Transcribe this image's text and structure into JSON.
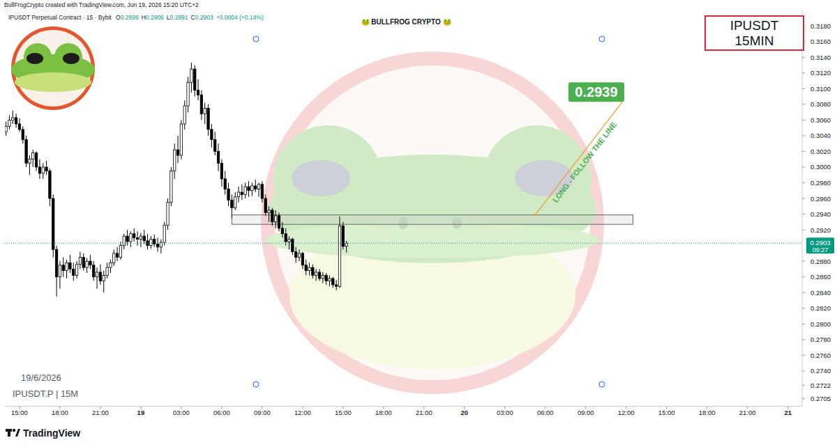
{
  "header": {
    "credit": "BullFrogCrypto created with TradingView.com, Jun 19, 2026 15:20 UTC+2",
    "symbol": "IPUSDT Perpetual Contract · 15 · Bybit",
    "ohlc_labels": [
      "O",
      "H",
      "L",
      "C"
    ],
    "change": "+0.0004 (+0.14%)",
    "brand": "🐸 BULLFROG CRYPTO 🐸",
    "title_box": [
      "IPUSDT",
      "15MIN"
    ],
    "date": "19/6/2026",
    "pair_label": "IPUSDT.P | 15M",
    "countdown": "09:27",
    "footer": "TradingView"
  },
  "chart_data": {
    "type": "candlestick",
    "grid": false,
    "x": [
      "2026-06-18T14:00",
      "2026-06-18T14:15",
      "2026-06-18T14:30",
      "2026-06-18T14:45",
      "2026-06-18T15:00",
      "2026-06-18T15:15",
      "2026-06-18T15:30",
      "2026-06-18T15:45",
      "2026-06-18T16:00",
      "2026-06-18T16:15",
      "2026-06-18T16:30",
      "2026-06-18T16:45",
      "2026-06-18T17:00",
      "2026-06-18T17:15",
      "2026-06-18T17:30",
      "2026-06-18T17:45",
      "2026-06-18T18:00",
      "2026-06-18T18:15",
      "2026-06-18T18:30",
      "2026-06-18T18:45",
      "2026-06-18T19:00",
      "2026-06-18T19:15",
      "2026-06-18T19:30",
      "2026-06-18T19:45",
      "2026-06-18T20:00",
      "2026-06-18T20:15",
      "2026-06-18T20:30",
      "2026-06-18T20:45",
      "2026-06-18T21:00",
      "2026-06-18T21:15",
      "2026-06-18T21:30",
      "2026-06-18T21:45",
      "2026-06-18T22:00",
      "2026-06-18T22:15",
      "2026-06-18T22:30",
      "2026-06-18T22:45",
      "2026-06-18T23:00",
      "2026-06-18T23:15",
      "2026-06-18T23:30",
      "2026-06-18T23:45",
      "2026-06-19T00:00",
      "2026-06-19T00:15",
      "2026-06-19T00:30",
      "2026-06-19T00:45",
      "2026-06-19T01:00",
      "2026-06-19T01:15",
      "2026-06-19T01:30",
      "2026-06-19T01:45",
      "2026-06-19T02:00",
      "2026-06-19T02:15",
      "2026-06-19T02:30",
      "2026-06-19T02:45",
      "2026-06-19T03:00",
      "2026-06-19T03:15",
      "2026-06-19T03:30",
      "2026-06-19T03:45",
      "2026-06-19T04:00",
      "2026-06-19T04:15",
      "2026-06-19T04:30",
      "2026-06-19T04:45",
      "2026-06-19T05:00",
      "2026-06-19T05:15",
      "2026-06-19T05:30",
      "2026-06-19T05:45",
      "2026-06-19T06:00",
      "2026-06-19T06:15",
      "2026-06-19T06:30",
      "2026-06-19T06:45",
      "2026-06-19T07:00",
      "2026-06-19T07:15",
      "2026-06-19T07:30",
      "2026-06-19T07:45",
      "2026-06-19T08:00",
      "2026-06-19T08:15",
      "2026-06-19T08:30",
      "2026-06-19T08:45",
      "2026-06-19T09:00",
      "2026-06-19T09:15",
      "2026-06-19T09:30",
      "2026-06-19T09:45",
      "2026-06-19T10:00",
      "2026-06-19T10:15",
      "2026-06-19T10:30",
      "2026-06-19T10:45",
      "2026-06-19T11:00",
      "2026-06-19T11:15",
      "2026-06-19T11:30",
      "2026-06-19T11:45",
      "2026-06-19T12:00",
      "2026-06-19T12:15",
      "2026-06-19T12:30",
      "2026-06-19T12:45",
      "2026-06-19T13:00",
      "2026-06-19T13:15",
      "2026-06-19T13:30",
      "2026-06-19T13:45",
      "2026-06-19T14:00",
      "2026-06-19T14:15",
      "2026-06-19T14:30",
      "2026-06-19T14:45",
      "2026-06-19T15:00",
      "2026-06-19T15:15"
    ],
    "open": [
      0.3045,
      0.3052,
      0.306,
      0.3063,
      0.3055,
      0.3048,
      0.3035,
      0.3005,
      0.301,
      0.3018,
      0.3,
      0.2992,
      0.3,
      0.2995,
      0.296,
      0.2895,
      0.286,
      0.2875,
      0.2868,
      0.2878,
      0.287,
      0.2862,
      0.2876,
      0.2885,
      0.2872,
      0.288,
      0.2875,
      0.286,
      0.2866,
      0.2855,
      0.2862,
      0.2872,
      0.2878,
      0.289,
      0.2885,
      0.29,
      0.2912,
      0.2905,
      0.2915,
      0.291,
      0.2908,
      0.2912,
      0.2906,
      0.29,
      0.2908,
      0.2902,
      0.2898,
      0.2904,
      0.2926,
      0.2955,
      0.2995,
      0.3022,
      0.3015,
      0.3055,
      0.3078,
      0.3108,
      0.3125,
      0.3098,
      0.3092,
      0.3068,
      0.3075,
      0.3048,
      0.3035,
      0.302,
      0.3005,
      0.2985,
      0.2972,
      0.2958,
      0.2948,
      0.2962,
      0.2968,
      0.2965,
      0.2975,
      0.297,
      0.2976,
      0.2972,
      0.2978,
      0.296,
      0.2942,
      0.2945,
      0.293,
      0.2938,
      0.2922,
      0.2915,
      0.2905,
      0.2908,
      0.2892,
      0.2885,
      0.289,
      0.2875,
      0.2868,
      0.2872,
      0.2862,
      0.2866,
      0.2858,
      0.2862,
      0.2855,
      0.2858,
      0.285,
      0.2848,
      0.2925,
      0.2899
    ],
    "high": [
      0.3058,
      0.3066,
      0.3072,
      0.3068,
      0.3062,
      0.3052,
      0.304,
      0.3015,
      0.3022,
      0.302,
      0.301,
      0.3005,
      0.3008,
      0.2998,
      0.2965,
      0.29,
      0.288,
      0.2885,
      0.2882,
      0.2888,
      0.2878,
      0.288,
      0.2892,
      0.289,
      0.2884,
      0.2888,
      0.288,
      0.2872,
      0.2876,
      0.2868,
      0.2878,
      0.2882,
      0.2895,
      0.2898,
      0.2905,
      0.2915,
      0.292,
      0.2918,
      0.2922,
      0.2918,
      0.2916,
      0.292,
      0.2915,
      0.2912,
      0.2914,
      0.291,
      0.2908,
      0.293,
      0.296,
      0.3,
      0.303,
      0.304,
      0.306,
      0.3085,
      0.3115,
      0.3133,
      0.313,
      0.3112,
      0.3098,
      0.3082,
      0.308,
      0.3055,
      0.3045,
      0.303,
      0.301,
      0.2995,
      0.298,
      0.2965,
      0.2968,
      0.2975,
      0.2978,
      0.298,
      0.2982,
      0.298,
      0.2984,
      0.298,
      0.2982,
      0.2965,
      0.295,
      0.2948,
      0.2945,
      0.2942,
      0.293,
      0.2922,
      0.2912,
      0.291,
      0.2898,
      0.2895,
      0.2892,
      0.2882,
      0.2878,
      0.2876,
      0.287,
      0.287,
      0.2866,
      0.2865,
      0.2862,
      0.286,
      0.2856,
      0.2937,
      0.293,
      0.2906
    ],
    "low": [
      0.304,
      0.3048,
      0.3055,
      0.305,
      0.3045,
      0.303,
      0.3,
      0.299,
      0.3,
      0.2995,
      0.2985,
      0.2985,
      0.299,
      0.295,
      0.2885,
      0.2835,
      0.2845,
      0.286,
      0.2858,
      0.2865,
      0.2855,
      0.2858,
      0.287,
      0.2868,
      0.2865,
      0.287,
      0.2855,
      0.2845,
      0.285,
      0.284,
      0.2858,
      0.2865,
      0.2874,
      0.288,
      0.2882,
      0.2895,
      0.29,
      0.2898,
      0.2905,
      0.29,
      0.2898,
      0.2902,
      0.2895,
      0.2896,
      0.2898,
      0.2892,
      0.289,
      0.29,
      0.292,
      0.295,
      0.2985,
      0.3005,
      0.301,
      0.3048,
      0.307,
      0.3095,
      0.309,
      0.3085,
      0.306,
      0.3055,
      0.304,
      0.3025,
      0.3015,
      0.2995,
      0.2975,
      0.2965,
      0.295,
      0.2935,
      0.2945,
      0.2955,
      0.2958,
      0.296,
      0.2962,
      0.2963,
      0.2968,
      0.2962,
      0.2955,
      0.2938,
      0.293,
      0.2925,
      0.2922,
      0.2918,
      0.291,
      0.29,
      0.2895,
      0.2888,
      0.2878,
      0.288,
      0.287,
      0.2862,
      0.2862,
      0.2858,
      0.2855,
      0.2855,
      0.2852,
      0.285,
      0.2848,
      0.2846,
      0.2843,
      0.2846,
      0.2895,
      0.2891
    ],
    "close": [
      0.3052,
      0.306,
      0.3063,
      0.3055,
      0.3048,
      0.3035,
      0.3005,
      0.301,
      0.3018,
      0.3,
      0.2992,
      0.3,
      0.2995,
      0.296,
      0.2895,
      0.286,
      0.2875,
      0.2868,
      0.2878,
      0.287,
      0.2862,
      0.2876,
      0.2885,
      0.2872,
      0.288,
      0.2875,
      0.286,
      0.2866,
      0.2855,
      0.2862,
      0.2872,
      0.2878,
      0.289,
      0.2885,
      0.29,
      0.2912,
      0.2905,
      0.2915,
      0.291,
      0.2908,
      0.2912,
      0.2906,
      0.29,
      0.2908,
      0.2902,
      0.2898,
      0.2904,
      0.2926,
      0.2955,
      0.2995,
      0.3022,
      0.3015,
      0.3055,
      0.3078,
      0.3108,
      0.3125,
      0.3098,
      0.3092,
      0.3068,
      0.3075,
      0.3048,
      0.3035,
      0.302,
      0.3005,
      0.2985,
      0.2972,
      0.2958,
      0.2948,
      0.2962,
      0.2968,
      0.2965,
      0.2975,
      0.297,
      0.2976,
      0.2972,
      0.2978,
      0.296,
      0.2942,
      0.2945,
      0.293,
      0.2938,
      0.2922,
      0.2915,
      0.2905,
      0.2908,
      0.2892,
      0.2885,
      0.289,
      0.2875,
      0.2868,
      0.2872,
      0.2862,
      0.2866,
      0.2858,
      0.2862,
      0.2855,
      0.2858,
      0.285,
      0.2848,
      0.2925,
      0.2899,
      0.2903
    ],
    "xlim": [
      "2026-06-18T13:55",
      "2026-06-21T01:03"
    ],
    "xticks": [
      {
        "value": "2026-06-18T15:00",
        "label": "15:00"
      },
      {
        "value": "2026-06-18T18:00",
        "label": "18:00"
      },
      {
        "value": "2026-06-18T21:00",
        "label": "21:00"
      },
      {
        "value": "2026-06-19T00:00",
        "label": "19"
      },
      {
        "value": "2026-06-19T03:00",
        "label": "03:00"
      },
      {
        "value": "2026-06-19T06:00",
        "label": "06:00"
      },
      {
        "value": "2026-06-19T09:00",
        "label": "09:00"
      },
      {
        "value": "2026-06-19T12:00",
        "label": "12:00"
      },
      {
        "value": "2026-06-19T15:00",
        "label": "15:00"
      },
      {
        "value": "2026-06-19T18:00",
        "label": "18:00"
      },
      {
        "value": "2026-06-19T21:00",
        "label": "21:00"
      },
      {
        "value": "2026-06-20T00:00",
        "label": "20"
      },
      {
        "value": "2026-06-20T03:00",
        "label": "03:00"
      },
      {
        "value": "2026-06-20T06:00",
        "label": "06:00"
      },
      {
        "value": "2026-06-20T09:00",
        "label": "09:00"
      },
      {
        "value": "2026-06-20T12:00",
        "label": "12:00"
      },
      {
        "value": "2026-06-20T15:00",
        "label": "15:00"
      },
      {
        "value": "2026-06-20T18:00",
        "label": "18:00"
      },
      {
        "value": "2026-06-20T21:00",
        "label": "21:00"
      },
      {
        "value": "2026-06-21T00:00",
        "label": "21"
      }
    ],
    "ylim": [
      0.2695,
      0.32
    ],
    "yticks": [
      {
        "value": 0.318,
        "label": "0.3180"
      },
      {
        "value": 0.316,
        "label": "0.3160"
      },
      {
        "value": 0.314,
        "label": "0.3140"
      },
      {
        "value": 0.312,
        "label": "0.3120"
      },
      {
        "value": 0.31,
        "label": "0.3100"
      },
      {
        "value": 0.308,
        "label": "0.3080"
      },
      {
        "value": 0.306,
        "label": "0.3060"
      },
      {
        "value": 0.304,
        "label": "0.3040"
      },
      {
        "value": 0.302,
        "label": "0.3020"
      },
      {
        "value": 0.3,
        "label": "0.3000"
      },
      {
        "value": 0.298,
        "label": "0.2980"
      },
      {
        "value": 0.296,
        "label": "0.2960"
      },
      {
        "value": 0.294,
        "label": "0.2940"
      },
      {
        "value": 0.292,
        "label": "0.2920"
      },
      {
        "value": 0.288,
        "label": "0.2880"
      },
      {
        "value": 0.286,
        "label": "0.2860"
      },
      {
        "value": 0.284,
        "label": "0.2840"
      },
      {
        "value": 0.282,
        "label": "0.2820"
      },
      {
        "value": 0.28,
        "label": "0.2800"
      },
      {
        "value": 0.278,
        "label": "0.2780"
      },
      {
        "value": 0.276,
        "label": "0.2760"
      },
      {
        "value": 0.274,
        "label": "0.2740"
      },
      0.2722,
      0.2705
    ],
    "zone": {
      "x": [
        "2026-06-19T06:45",
        "2026-06-20T12:30"
      ],
      "y": [
        0.2927,
        0.2939
      ]
    },
    "annotation": {
      "text": "LONG - FOLLOW THE LINE",
      "x": [
        "2026-06-20T05:15",
        "2026-06-20T11:45"
      ],
      "y": [
        0.2939,
        0.3084
      ],
      "target": 0.2939
    }
  }
}
